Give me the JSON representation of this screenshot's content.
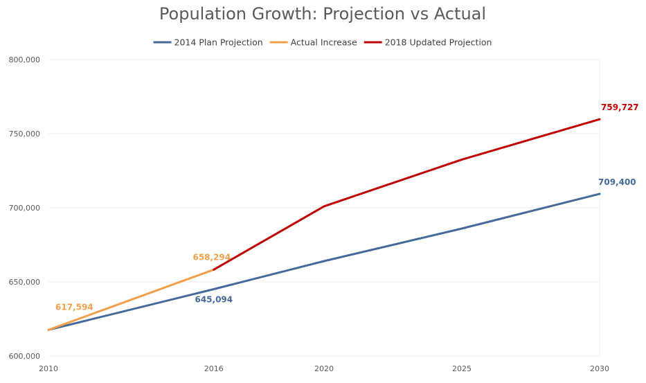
{
  "chart_data": {
    "type": "line",
    "title": "Population Growth: Projection vs Actual",
    "xlabel": "",
    "ylabel": "",
    "xlim": [
      2010,
      2030
    ],
    "ylim": [
      600000,
      800000
    ],
    "x_ticks": [
      2010,
      2016,
      2020,
      2025,
      2030
    ],
    "x_tick_labels": [
      "2010",
      "2016",
      "2020",
      "2025",
      "2030"
    ],
    "y_ticks": [
      600000,
      650000,
      700000,
      750000,
      800000
    ],
    "y_tick_labels": [
      "600,000",
      "650,000",
      "700,000",
      "750,000",
      "800,000"
    ],
    "grid": true,
    "legend_position": "top",
    "series": [
      {
        "name": "2014 Plan Projection",
        "color": "#44699a",
        "points": [
          [
            2010,
            617594
          ],
          [
            2016,
            645094
          ],
          [
            2020,
            664000
          ],
          [
            2025,
            686000
          ],
          [
            2030,
            709400
          ]
        ]
      },
      {
        "name": "Actual Increase",
        "color": "#f0a04b",
        "points": [
          [
            2010,
            617594
          ],
          [
            2016,
            658294
          ]
        ]
      },
      {
        "name": "2018 Updated Projection",
        "color": "#c00000",
        "points": [
          [
            2016,
            658294
          ],
          [
            2020,
            701000
          ],
          [
            2025,
            732500
          ],
          [
            2030,
            759727
          ]
        ]
      }
    ],
    "data_labels": [
      {
        "series": 1,
        "x": 2010,
        "y": 617594,
        "text": "617,594"
      },
      {
        "series": 1,
        "x": 2016,
        "y": 658294,
        "text": "658,294"
      },
      {
        "series": 0,
        "x": 2016,
        "y": 645094,
        "text": "645,094"
      },
      {
        "series": 0,
        "x": 2030,
        "y": 709400,
        "text": "709,400"
      },
      {
        "series": 2,
        "x": 2030,
        "y": 759727,
        "text": "759,727"
      }
    ]
  }
}
